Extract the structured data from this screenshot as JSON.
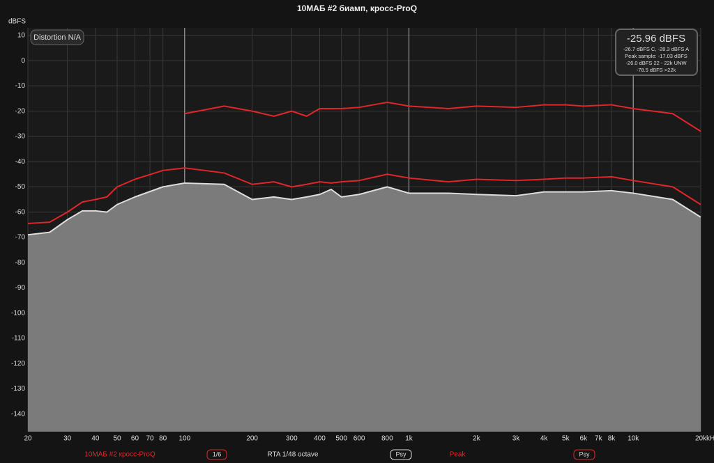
{
  "chart_data": {
    "type": "line",
    "title": "10МАБ #2 биамп, кросс-ProQ",
    "y_label": "dBFS",
    "x_unit": "kHz",
    "log_x": true,
    "grid": true,
    "x": [
      20,
      25,
      30,
      35,
      40,
      45,
      50,
      60,
      80,
      100,
      150,
      200,
      250,
      300,
      350,
      400,
      450,
      500,
      600,
      800,
      1000,
      1500,
      2000,
      3000,
      4000,
      5000,
      6000,
      8000,
      10000,
      15000,
      20000
    ],
    "series": [
      {
        "name": "RTA 1/48 octave",
        "color": "#dddddd",
        "fill": "#7b7b7b",
        "values": [
          -69,
          -68,
          -63,
          -59.5,
          -59.5,
          -60,
          -57,
          -54,
          -50,
          -48.5,
          -49,
          -55,
          -54,
          -55,
          -54,
          -53,
          -51,
          -54,
          -53,
          -50,
          -52.5,
          -52.5,
          -53,
          -53.5,
          -52,
          -52,
          -52,
          -51.5,
          -52.5,
          -55,
          -62
        ]
      },
      {
        "name": "10МАБ #2 кросс-ProQ",
        "color": "#e0262a",
        "badge": "1/6",
        "values": [
          -64.5,
          -64,
          -60,
          -56,
          -55,
          -54,
          -50,
          -47,
          -43.5,
          -42.5,
          -44.5,
          -49,
          -48,
          -50,
          -49,
          -48,
          -48.5,
          -48,
          -47.5,
          -45,
          -46.5,
          -48,
          -47,
          -47.5,
          -47,
          -46.5,
          -46.5,
          -46,
          -47.5,
          -50,
          -57
        ]
      },
      {
        "name": "Peak",
        "color": "#e0262a",
        "badge": "Psy",
        "values": [
          null,
          null,
          null,
          null,
          null,
          null,
          null,
          null,
          null,
          -21,
          -18,
          -20,
          -22,
          -20,
          -22,
          -19,
          -19,
          -19,
          -18.5,
          -16.5,
          -18,
          -19,
          -18,
          -18.5,
          -17.5,
          -17.5,
          -18,
          -17.5,
          -19,
          -21,
          -28
        ]
      }
    ],
    "rta_badge": "Psy",
    "xlim": [
      20,
      20000
    ],
    "ylim": [
      -147,
      13
    ],
    "xticks": [
      20,
      30,
      40,
      50,
      60,
      70,
      80,
      100,
      200,
      300,
      400,
      500,
      600,
      800,
      {
        "value": 1000,
        "label": "1k"
      },
      {
        "value": 2000,
        "label": "2k"
      },
      {
        "value": 3000,
        "label": "3k"
      },
      {
        "value": 4000,
        "label": "4k"
      },
      {
        "value": 5000,
        "label": "5k"
      },
      {
        "value": 6000,
        "label": "6k"
      },
      {
        "value": 7000,
        "label": "7k"
      },
      {
        "value": 8000,
        "label": "8k"
      },
      {
        "value": 10000,
        "label": "10k"
      },
      {
        "value": 20000,
        "label": "20k"
      }
    ],
    "yticks": [
      10,
      0,
      -10,
      -20,
      -30,
      -40,
      -50,
      -60,
      -70,
      -80,
      -90,
      -100,
      -110,
      -120,
      -130,
      -140
    ],
    "distortion": "Distortion N/A",
    "level": {
      "main": "-25.96 dBFS",
      "lines": [
        "-26.7 dBFS C, -28.3 dBFS A",
        "Peak sample: -17.03 dBFS",
        "-26.0 dBFS 22 - 22k UNW",
        "-78.5 dBFS >22k"
      ]
    }
  }
}
